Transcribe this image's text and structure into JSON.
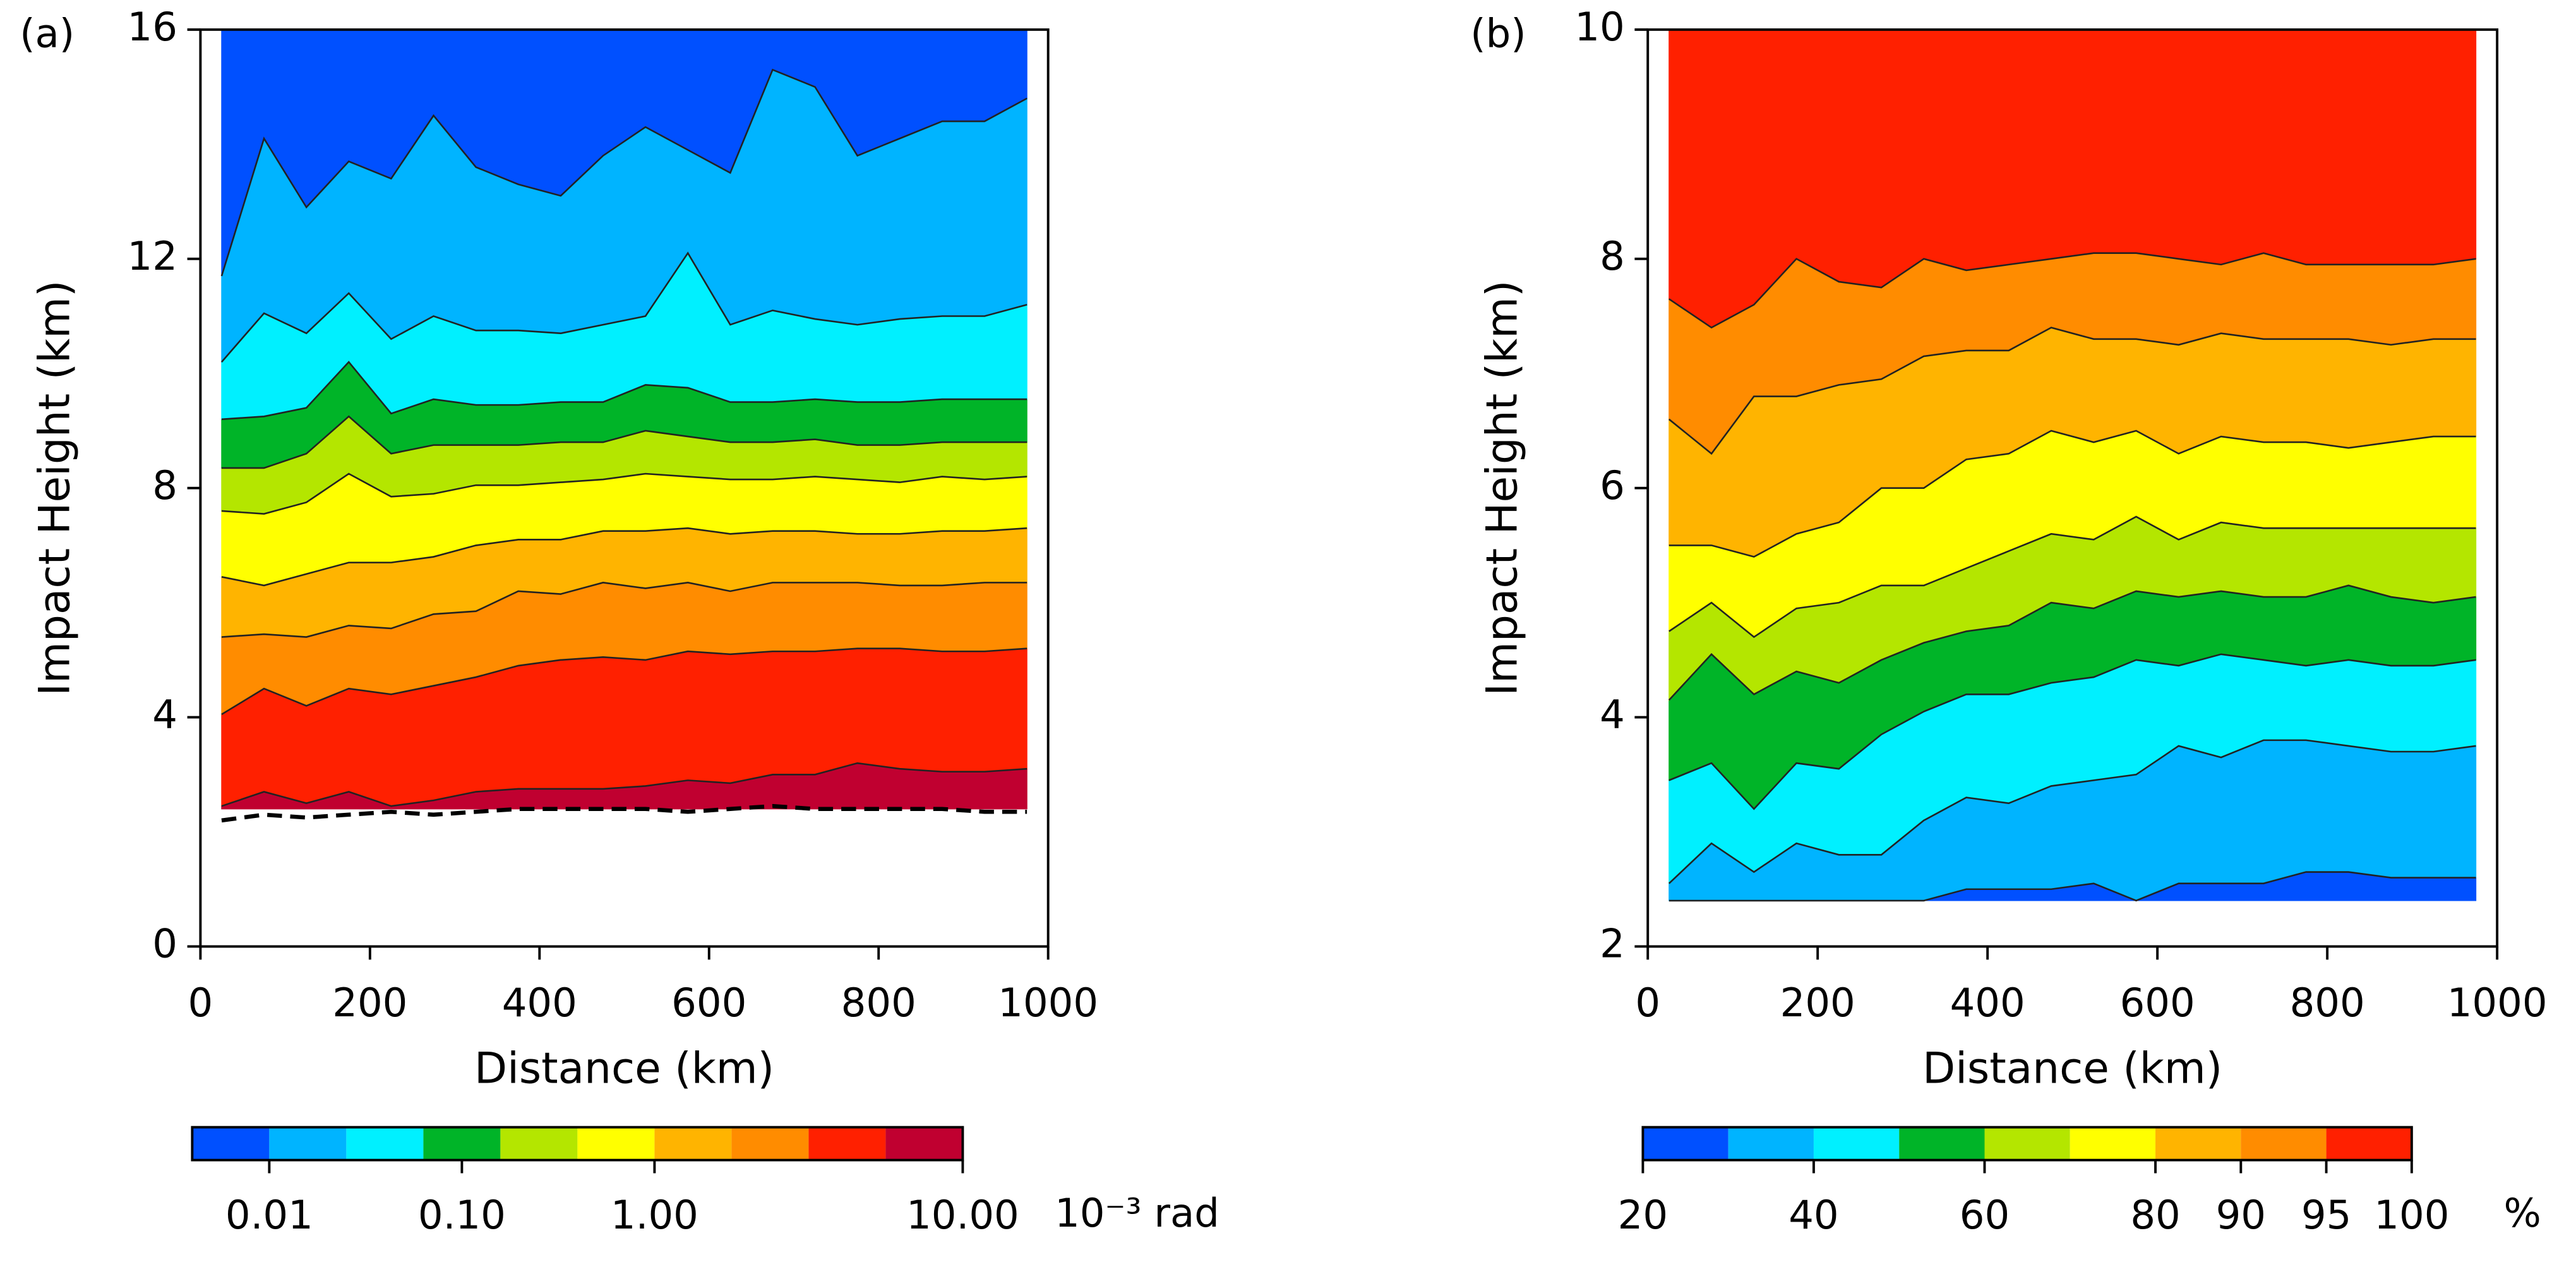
{
  "chart_data": [
    {
      "type": "contour",
      "label": "(a)",
      "xlabel": "Distance (km)",
      "ylabel": "Impact Height (km)",
      "xlim": [
        0,
        1000
      ],
      "ylim": [
        0,
        16
      ],
      "xticks": [
        0,
        200,
        400,
        600,
        800,
        1000
      ],
      "yticks": [
        0,
        4,
        8,
        12,
        16
      ],
      "x": [
        25,
        75,
        125,
        175,
        225,
        275,
        325,
        375,
        425,
        475,
        525,
        575,
        625,
        675,
        725,
        775,
        825,
        875,
        925,
        975
      ],
      "bottom": 2.4,
      "contours": [
        [
          2.45,
          2.7,
          2.5,
          2.7,
          2.45,
          2.55,
          2.7,
          2.75,
          2.75,
          2.75,
          2.8,
          2.9,
          2.85,
          3.0,
          3.0,
          3.2,
          3.1,
          3.05,
          3.05,
          3.1
        ],
        [
          4.05,
          4.5,
          4.2,
          4.5,
          4.4,
          4.55,
          4.7,
          4.9,
          5.0,
          5.05,
          5.0,
          5.15,
          5.1,
          5.15,
          5.15,
          5.2,
          5.2,
          5.15,
          5.15,
          5.2
        ],
        [
          5.4,
          5.45,
          5.4,
          5.6,
          5.55,
          5.8,
          5.85,
          6.2,
          6.15,
          6.35,
          6.25,
          6.35,
          6.2,
          6.35,
          6.35,
          6.35,
          6.3,
          6.3,
          6.35,
          6.35
        ],
        [
          6.45,
          6.3,
          6.5,
          6.7,
          6.7,
          6.8,
          7.0,
          7.1,
          7.1,
          7.25,
          7.25,
          7.3,
          7.2,
          7.25,
          7.25,
          7.2,
          7.2,
          7.25,
          7.25,
          7.3
        ],
        [
          7.6,
          7.55,
          7.75,
          8.25,
          7.85,
          7.9,
          8.05,
          8.05,
          8.1,
          8.15,
          8.25,
          8.2,
          8.15,
          8.15,
          8.2,
          8.15,
          8.1,
          8.2,
          8.15,
          8.2
        ],
        [
          8.35,
          8.35,
          8.6,
          9.25,
          8.6,
          8.75,
          8.75,
          8.75,
          8.8,
          8.8,
          9.0,
          8.9,
          8.8,
          8.8,
          8.85,
          8.75,
          8.75,
          8.8,
          8.8,
          8.8
        ],
        [
          9.2,
          9.25,
          9.4,
          10.2,
          9.3,
          9.55,
          9.45,
          9.45,
          9.5,
          9.5,
          9.8,
          9.75,
          9.5,
          9.5,
          9.55,
          9.5,
          9.5,
          9.55,
          9.55,
          9.55
        ],
        [
          10.2,
          11.05,
          10.7,
          11.4,
          10.6,
          11.0,
          10.75,
          10.75,
          10.7,
          10.85,
          11.0,
          12.1,
          10.85,
          11.1,
          10.95,
          10.85,
          10.95,
          11.0,
          11.0,
          11.2
        ],
        [
          11.7,
          14.1,
          12.9,
          13.7,
          13.4,
          14.5,
          13.6,
          13.3,
          13.1,
          13.8,
          14.3,
          13.9,
          13.5,
          15.3,
          15.0,
          13.8,
          14.1,
          14.4,
          14.4,
          14.8
        ]
      ],
      "dashed_line": [
        2.2,
        2.3,
        2.25,
        2.3,
        2.35,
        2.3,
        2.35,
        2.4,
        2.4,
        2.4,
        2.4,
        2.35,
        2.4,
        2.45,
        2.4,
        2.4,
        2.4,
        2.4,
        2.35,
        2.35
      ],
      "colors": [
        "#c00030",
        "#ff2000",
        "#ff8c00",
        "#ffb400",
        "#ffff00",
        "#b4e600",
        "#00b428",
        "#00f0ff",
        "#00b4ff",
        "#0050ff"
      ],
      "colorbar": {
        "scale": "log",
        "levels": [
          0.005,
          0.01,
          0.02,
          0.05,
          0.2,
          0.5,
          1,
          2,
          3,
          5,
          10
        ],
        "ticks": [
          0.01,
          {
            "value": 0.1,
            "label": "0.10"
          },
          {
            "value": 1,
            "label": "1.00"
          },
          {
            "value": 10,
            "label": "10.00"
          }
        ],
        "unit": "10⁻³ rad"
      }
    },
    {
      "type": "contour",
      "label": "(b)",
      "xlabel": "Distance (km)",
      "ylabel": "Impact Height (km)",
      "xlim": [
        0,
        1000
      ],
      "ylim": [
        2,
        10
      ],
      "xticks": [
        0,
        200,
        400,
        600,
        800,
        1000
      ],
      "yticks": [
        2,
        4,
        6,
        8,
        10
      ],
      "x": [
        25,
        75,
        125,
        175,
        225,
        275,
        325,
        375,
        425,
        475,
        525,
        575,
        625,
        675,
        725,
        775,
        825,
        875,
        925,
        975
      ],
      "bottom": 2.4,
      "contours": [
        [
          2.4,
          2.4,
          2.4,
          2.4,
          2.4,
          2.4,
          2.4,
          2.5,
          2.5,
          2.5,
          2.55,
          2.4,
          2.55,
          2.55,
          2.55,
          2.65,
          2.65,
          2.6,
          2.6,
          2.6
        ],
        [
          2.55,
          2.9,
          2.65,
          2.9,
          2.8,
          2.8,
          3.1,
          3.3,
          3.25,
          3.4,
          3.45,
          3.5,
          3.75,
          3.65,
          3.8,
          3.8,
          3.75,
          3.7,
          3.7,
          3.75
        ],
        [
          3.45,
          3.6,
          3.2,
          3.6,
          3.55,
          3.85,
          4.05,
          4.2,
          4.2,
          4.3,
          4.35,
          4.5,
          4.45,
          4.55,
          4.5,
          4.45,
          4.5,
          4.45,
          4.45,
          4.5
        ],
        [
          4.15,
          4.55,
          4.2,
          4.4,
          4.3,
          4.5,
          4.65,
          4.75,
          4.8,
          5.0,
          4.95,
          5.1,
          5.05,
          5.1,
          5.05,
          5.05,
          5.15,
          5.05,
          5.0,
          5.05
        ],
        [
          4.75,
          5.0,
          4.7,
          4.95,
          5.0,
          5.15,
          5.15,
          5.3,
          5.45,
          5.6,
          5.55,
          5.75,
          5.55,
          5.7,
          5.65,
          5.65,
          5.65,
          5.65,
          5.65,
          5.65
        ],
        [
          5.5,
          5.5,
          5.4,
          5.6,
          5.7,
          6.0,
          6.0,
          6.25,
          6.3,
          6.5,
          6.4,
          6.5,
          6.3,
          6.45,
          6.4,
          6.4,
          6.35,
          6.4,
          6.45,
          6.45
        ],
        [
          6.6,
          6.3,
          6.8,
          6.8,
          6.9,
          6.95,
          7.15,
          7.2,
          7.2,
          7.4,
          7.3,
          7.3,
          7.25,
          7.35,
          7.3,
          7.3,
          7.3,
          7.25,
          7.3,
          7.3
        ],
        [
          7.65,
          7.4,
          7.6,
          8.0,
          7.8,
          7.75,
          8.0,
          7.9,
          7.95,
          8.0,
          8.05,
          8.05,
          8.0,
          7.95,
          8.05,
          7.95,
          7.95,
          7.95,
          7.95,
          8.0
        ]
      ],
      "colors": [
        "#0050ff",
        "#00b4ff",
        "#00f0ff",
        "#00b428",
        "#b4e600",
        "#ffff00",
        "#ffb400",
        "#ff8c00",
        "#ff2000"
      ],
      "colorbar": {
        "scale": "linear",
        "levels": [
          20,
          30,
          40,
          50,
          60,
          70,
          80,
          90,
          95,
          100
        ],
        "ticks": [
          20,
          40,
          60,
          80,
          90,
          95,
          100
        ],
        "unit": "%"
      }
    }
  ]
}
